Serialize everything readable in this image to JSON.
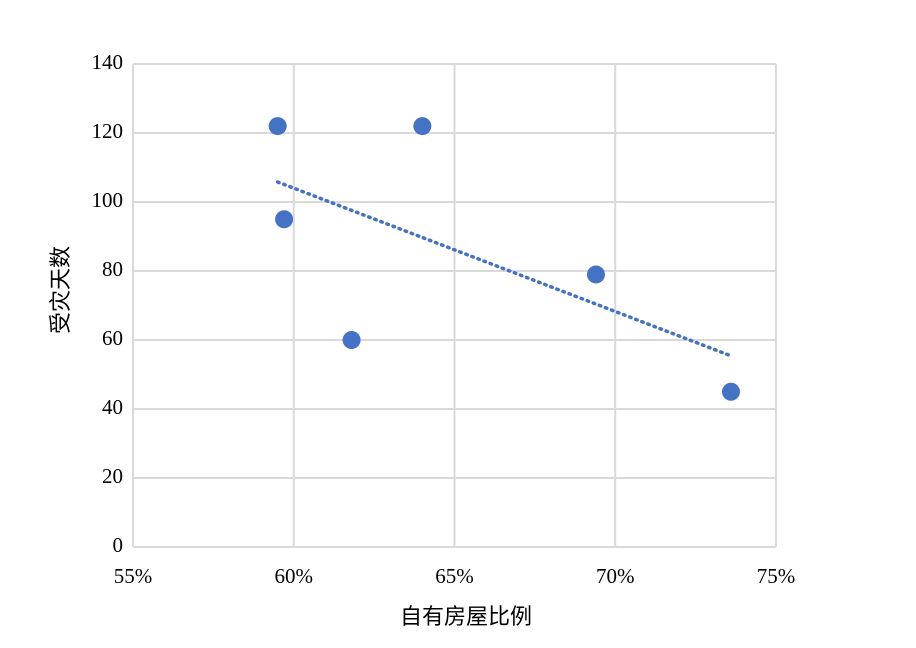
{
  "chart_data": {
    "type": "scatter",
    "x_label": "自有房屋比例",
    "y_label": "受灾天数",
    "series": [
      {
        "color": "#4472c4",
        "x": [
          59.5,
          59.7,
          61.8,
          64.0,
          69.4,
          73.6
        ],
        "values": [
          122,
          95,
          60,
          122,
          79,
          45
        ]
      }
    ],
    "trendline": {
      "color": "#4472c4",
      "x": [
        59.5,
        73.6
      ],
      "values": [
        105.8,
        55.4
      ]
    },
    "xlim": [
      55,
      75
    ],
    "xticks": [
      {
        "value": 55,
        "label": "55%"
      },
      {
        "value": 60,
        "label": "60%"
      },
      {
        "value": 65,
        "label": "65%"
      },
      {
        "value": 70,
        "label": "70%"
      },
      {
        "value": 75,
        "label": "75%"
      }
    ],
    "ylim": [
      0,
      140
    ],
    "yticks": [
      0,
      20,
      40,
      60,
      80,
      100,
      120,
      140
    ],
    "grid": true
  }
}
